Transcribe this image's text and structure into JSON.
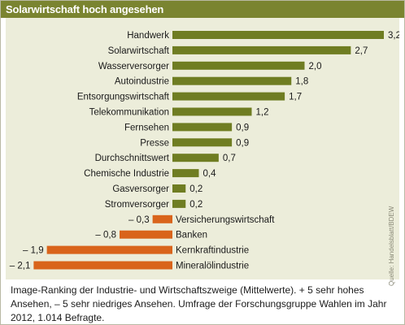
{
  "header": {
    "title": "Solarwirtschaft hoch angesehen"
  },
  "colors": {
    "header": "#7a8430",
    "positive": "#6f7d22",
    "negative": "#d9641b",
    "plot_bg": "#ecedda"
  },
  "chart_data": {
    "type": "bar",
    "orientation": "horizontal",
    "categories": [
      "Handwerk",
      "Solarwirtschaft",
      "Wasserversorger",
      "Autoindustrie",
      "Entsorgungswirtschaft",
      "Telekommunikation",
      "Fernsehen",
      "Presse",
      "Durchschnittswert",
      "Chemische Industrie",
      "Gasversorger",
      "Stromversorger",
      "Versicherungswirtschaft",
      "Banken",
      "Kernkraftindustrie",
      "Mineralölindustrie"
    ],
    "values": [
      3.2,
      2.7,
      2.0,
      1.8,
      1.7,
      1.2,
      0.9,
      0.9,
      0.7,
      0.4,
      0.2,
      0.2,
      -0.3,
      -0.8,
      -1.9,
      -2.1
    ],
    "value_labels": [
      "3,2",
      "2,7",
      "2,0",
      "1,8",
      "1,7",
      "1,2",
      "0,9",
      "0,9",
      "0,7",
      "0,4",
      "0,2",
      "0,2",
      "– 0,3",
      "– 0,8",
      "– 1,9",
      "– 2,1"
    ],
    "xlim": [
      -2.1,
      3.2
    ],
    "grid": false,
    "legend": "none"
  },
  "source": "Quelle: Handelsblatt/BDEW",
  "caption": "Image-Ranking der Industrie- und Wirtschaftszweige (Mittelwerte). + 5 sehr hohes Ansehen, – 5 sehr niedriges Ansehen. Umfrage der Forschungsgruppe Wahlen im Jahr 2012, 1.014 Befragte."
}
